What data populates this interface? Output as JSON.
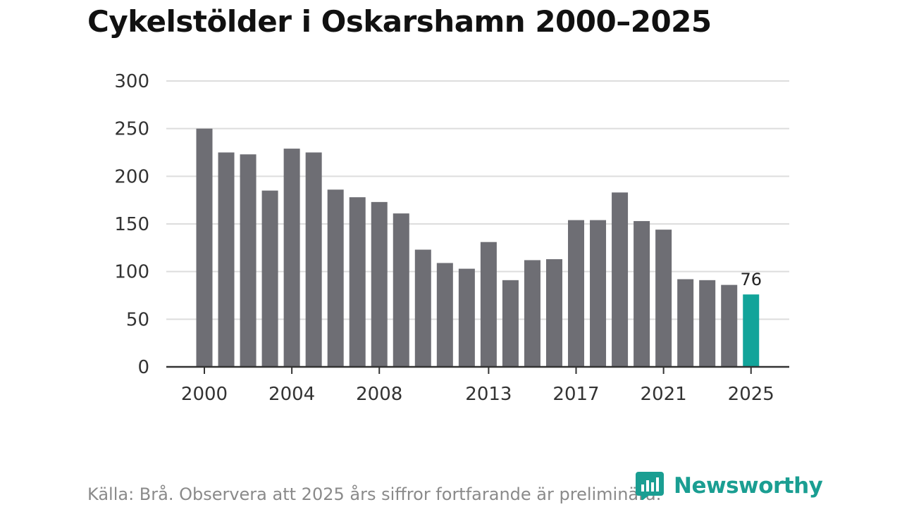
{
  "title": "Cykelstölder i Oskarshamn 2000–2025",
  "source": "Källa: Brå. Observera att 2025 års siffror fortfarande är preliminära.",
  "logo_text": "Newsworthy",
  "colors": {
    "bar": "#6e6e74",
    "highlight": "#12a49a",
    "grid": "#dddddd",
    "axis": "#333333"
  },
  "chart_data": {
    "type": "bar",
    "title": "Cykelstölder i Oskarshamn 2000–2025",
    "categories": [
      "2000",
      "2001",
      "2002",
      "2003",
      "2004",
      "2005",
      "2006",
      "2007",
      "2008",
      "2009",
      "2010",
      "2011",
      "2012",
      "2013",
      "2014",
      "2015",
      "2016",
      "2017",
      "2018",
      "2019",
      "2020",
      "2021",
      "2022",
      "2023",
      "2024",
      "2025"
    ],
    "values": [
      250,
      225,
      223,
      185,
      229,
      225,
      186,
      178,
      173,
      161,
      123,
      109,
      103,
      131,
      91,
      112,
      113,
      154,
      154,
      183,
      153,
      144,
      92,
      91,
      86,
      76
    ],
    "highlight_index": 25,
    "highlight_label": "76",
    "x_tick_labels": [
      "2000",
      "2004",
      "2008",
      "2013",
      "2017",
      "2021",
      "2025"
    ],
    "y_ticks": [
      0,
      50,
      100,
      150,
      200,
      250,
      300
    ],
    "ylim": [
      0,
      300
    ],
    "grid": true,
    "legend": "none"
  }
}
